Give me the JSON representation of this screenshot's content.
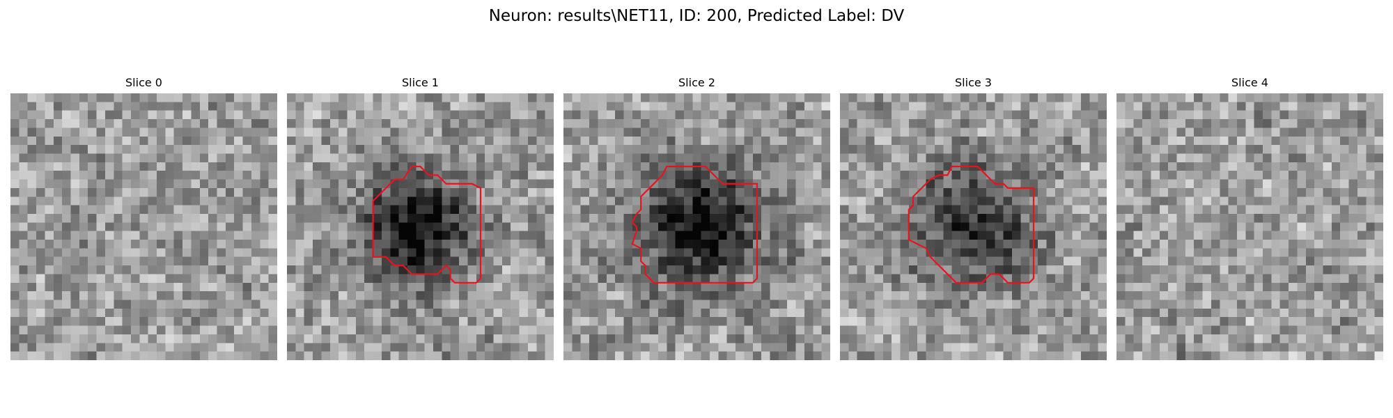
{
  "figure": {
    "title": "Neuron: results\\NET11, ID: 200, Predicted Label: DV"
  },
  "image_grid_size": 31,
  "outline_color": "#e8141c",
  "panels": [
    {
      "title": "Slice 0",
      "seed": 11,
      "blob": null,
      "outline": null
    },
    {
      "title": "Slice 1",
      "seed": 23,
      "blob": {
        "cx": 14.5,
        "cy": 15.0,
        "r": 6.0,
        "depth": 0.55
      },
      "outline": [
        [
          14.5,
          8.5
        ],
        [
          15.5,
          8.5
        ],
        [
          16.5,
          9.5
        ],
        [
          17.5,
          9.5
        ],
        [
          18.5,
          10.5
        ],
        [
          21.5,
          10.5
        ],
        [
          22.5,
          11.0
        ],
        [
          22.5,
          21.5
        ],
        [
          22.0,
          22.0
        ],
        [
          19.5,
          22.0
        ],
        [
          19.0,
          21.5
        ],
        [
          19.0,
          20.5
        ],
        [
          18.5,
          20.0
        ],
        [
          18.0,
          20.5
        ],
        [
          17.5,
          21.0
        ],
        [
          14.5,
          21.0
        ],
        [
          13.5,
          20.0
        ],
        [
          12.5,
          20.0
        ],
        [
          11.5,
          19.0
        ],
        [
          10.0,
          19.0
        ],
        [
          10.0,
          12.5
        ],
        [
          12.5,
          10.0
        ],
        [
          13.5,
          10.0
        ]
      ]
    },
    {
      "title": "Slice 2",
      "seed": 37,
      "blob": {
        "cx": 15.5,
        "cy": 15.0,
        "r": 7.0,
        "depth": 0.6
      },
      "outline": [
        [
          12.0,
          8.5
        ],
        [
          16.5,
          8.5
        ],
        [
          18.5,
          10.5
        ],
        [
          22.5,
          10.5
        ],
        [
          22.5,
          21.5
        ],
        [
          22.0,
          22.0
        ],
        [
          10.5,
          22.0
        ],
        [
          9.5,
          21.0
        ],
        [
          9.5,
          20.0
        ],
        [
          9.0,
          19.5
        ],
        [
          9.0,
          18.0
        ],
        [
          8.0,
          17.5
        ],
        [
          8.5,
          16.0
        ],
        [
          8.5,
          15.5
        ],
        [
          8.0,
          15.0
        ],
        [
          8.5,
          14.0
        ],
        [
          9.0,
          13.5
        ],
        [
          9.0,
          12.0
        ],
        [
          10.5,
          10.5
        ],
        [
          11.5,
          9.5
        ]
      ]
    },
    {
      "title": "Slice 3",
      "seed": 51,
      "blob": {
        "cx": 15.5,
        "cy": 15.0,
        "r": 6.5,
        "depth": 0.45
      },
      "outline": [
        [
          13.0,
          8.5
        ],
        [
          16.0,
          8.5
        ],
        [
          18.0,
          10.5
        ],
        [
          19.0,
          10.5
        ],
        [
          19.5,
          11.0
        ],
        [
          22.5,
          11.0
        ],
        [
          22.5,
          21.5
        ],
        [
          22.0,
          22.0
        ],
        [
          19.5,
          22.0
        ],
        [
          18.5,
          21.0
        ],
        [
          17.5,
          21.0
        ],
        [
          16.5,
          22.0
        ],
        [
          13.5,
          22.0
        ],
        [
          12.5,
          21.0
        ],
        [
          11.5,
          20.0
        ],
        [
          10.5,
          19.0
        ],
        [
          10.0,
          18.0
        ],
        [
          9.0,
          17.5
        ],
        [
          8.0,
          17.0
        ],
        [
          8.0,
          13.5
        ],
        [
          8.5,
          13.0
        ],
        [
          8.5,
          12.0
        ],
        [
          10.5,
          10.0
        ],
        [
          11.5,
          9.5
        ],
        [
          12.5,
          9.5
        ]
      ]
    },
    {
      "title": "Slice 4",
      "seed": 67,
      "blob": null,
      "outline": null
    }
  ]
}
